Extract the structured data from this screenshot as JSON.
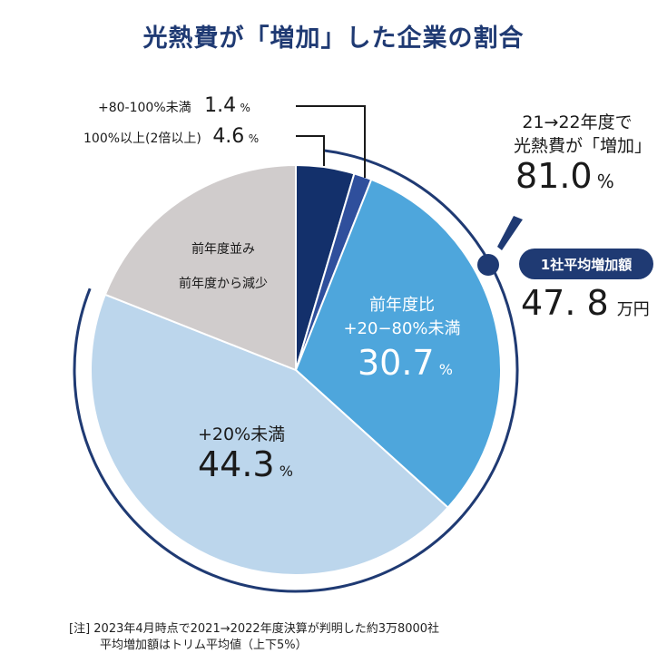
{
  "title": "光熱費が「増加」した企業の割合",
  "chart_data": {
    "type": "pie",
    "title": "光熱費が「増加」した企業の割合",
    "slices": [
      {
        "label": "100%以上(2倍以上)",
        "value": 4.6,
        "color": "#13306b"
      },
      {
        "label": "+80-100%未満",
        "value": 1.4,
        "color": "#2f4f9c"
      },
      {
        "label": "前年度比 +20−80%未満",
        "value": 30.7,
        "color": "#4ea6dc"
      },
      {
        "label": "+20%未満",
        "value": 44.3,
        "color": "#bcd6ec"
      },
      {
        "label": "前年度並み 前年度から減少",
        "value": 19.0,
        "color": "#d0cccc"
      }
    ]
  },
  "labels": {
    "s80": {
      "label": "+80-100%未満",
      "value": "1.4",
      "unit": "%"
    },
    "s100": {
      "label": "100%以上(2倍以上)",
      "value": "4.6",
      "unit": "%"
    },
    "s2080": {
      "line1": "前年度比",
      "line2": "+20−80%未満",
      "value": "30.7",
      "unit": "%"
    },
    "s20": {
      "line1": "+20%未満",
      "value": "44.3",
      "unit": "%"
    },
    "same": {
      "line1": "前年度並み",
      "line2": "前年度から減少"
    }
  },
  "annotation": {
    "line1": "21→22年度で",
    "line2": "光熱費が「増加」",
    "value": "81.0",
    "unit": "%",
    "badge": "1社平均増加額",
    "amount": "47. 8",
    "amount_unit": "万円"
  },
  "note": {
    "line1": "[注]  2023年4月時点で2021→2022年度決算が判明した約3万8000社",
    "line2": "平均増加額はトリム平均値（上下5%）"
  },
  "colors": {
    "navy": "#1f3a73"
  }
}
